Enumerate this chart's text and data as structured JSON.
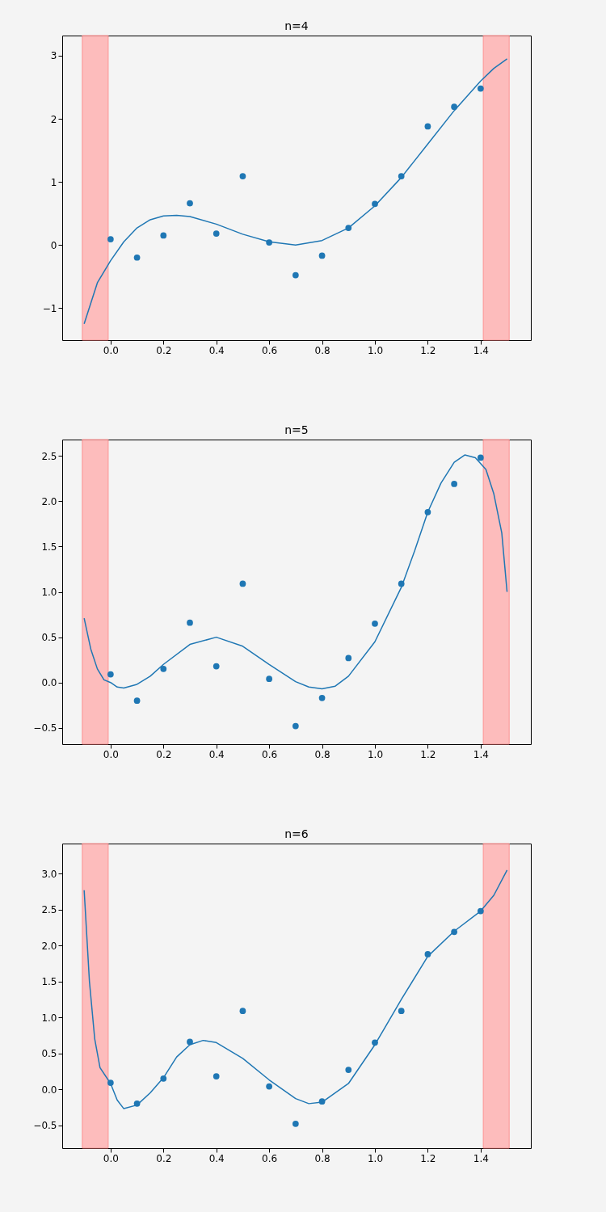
{
  "chart_data": [
    {
      "type": "scatter",
      "title": "n=4",
      "xlim": [
        -0.183,
        1.59
      ],
      "ylim": [
        -1.51,
        3.32
      ],
      "xticks": [
        {
          "value": 0,
          "label": "0.0"
        },
        {
          "value": 0.2,
          "label": "0.2"
        },
        {
          "value": 0.4,
          "label": "0.4"
        },
        {
          "value": 0.6,
          "label": "0.6"
        },
        {
          "value": 0.8,
          "label": "0.8"
        },
        {
          "value": 1,
          "label": "1.0"
        },
        {
          "value": 1.2,
          "label": "1.2"
        },
        {
          "value": 1.4,
          "label": "1.4"
        }
      ],
      "yticks": [
        -1,
        0,
        1,
        2,
        3
      ],
      "grid": false,
      "bands": [
        {
          "axis": "x",
          "from": -0.107,
          "to": -0.009,
          "color": "#ffb3b3"
        },
        {
          "axis": "x",
          "from": 1.41,
          "to": 1.508,
          "color": "#ffb3b3"
        }
      ],
      "series": [
        {
          "type": "line",
          "color": "#1f77b4",
          "line_style": "solid",
          "x": [
            -0.1,
            -0.05,
            0,
            0.05,
            0.1,
            0.15,
            0.2,
            0.25,
            0.3,
            0.4,
            0.5,
            0.6,
            0.7,
            0.8,
            0.9,
            1.0,
            1.1,
            1.2,
            1.3,
            1.4,
            1.45,
            1.5
          ],
          "values": [
            -1.25,
            -0.6,
            -0.25,
            0.05,
            0.27,
            0.4,
            0.46,
            0.47,
            0.45,
            0.33,
            0.17,
            0.05,
            0.0,
            0.07,
            0.27,
            0.62,
            1.07,
            1.6,
            2.13,
            2.6,
            2.8,
            2.95
          ]
        },
        {
          "type": "scatter",
          "color": "#1f77b4",
          "marker": "circle",
          "x": [
            0,
            0.1,
            0.2,
            0.3,
            0.4,
            0.5,
            0.6,
            0.7,
            0.8,
            0.9,
            1.0,
            1.1,
            1.2,
            1.3,
            1.4
          ],
          "values": [
            0.09,
            -0.2,
            0.15,
            0.66,
            0.18,
            1.09,
            0.04,
            -0.48,
            -0.17,
            0.27,
            0.65,
            1.09,
            1.88,
            2.19,
            2.48
          ]
        }
      ]
    },
    {
      "type": "scatter",
      "title": "n=5",
      "xlim": [
        -0.183,
        1.59
      ],
      "ylim": [
        -0.68,
        2.68
      ],
      "xticks": [
        {
          "value": 0,
          "label": "0.0"
        },
        {
          "value": 0.2,
          "label": "0.2"
        },
        {
          "value": 0.4,
          "label": "0.4"
        },
        {
          "value": 0.6,
          "label": "0.6"
        },
        {
          "value": 0.8,
          "label": "0.8"
        },
        {
          "value": 1,
          "label": "1.0"
        },
        {
          "value": 1.2,
          "label": "1.2"
        },
        {
          "value": 1.4,
          "label": "1.4"
        }
      ],
      "yticks": [
        -0.5,
        {
          "value": 0,
          "label": "0.0"
        },
        0.5,
        {
          "value": 1,
          "label": "1.0"
        },
        1.5,
        {
          "value": 2,
          "label": "2.0"
        },
        2.5
      ],
      "grid": false,
      "bands": [
        {
          "axis": "x",
          "from": -0.107,
          "to": -0.009,
          "color": "#ffb3b3"
        },
        {
          "axis": "x",
          "from": 1.41,
          "to": 1.508,
          "color": "#ffb3b3"
        }
      ],
      "series": [
        {
          "type": "line",
          "color": "#1f77b4",
          "line_style": "solid",
          "x": [
            -0.1,
            -0.075,
            -0.05,
            -0.025,
            0,
            0.025,
            0.05,
            0.1,
            0.15,
            0.2,
            0.3,
            0.4,
            0.5,
            0.6,
            0.7,
            0.75,
            0.8,
            0.85,
            0.9,
            1.0,
            1.1,
            1.15,
            1.2,
            1.25,
            1.3,
            1.34,
            1.38,
            1.42,
            1.45,
            1.48,
            1.5
          ],
          "values": [
            0.71,
            0.37,
            0.15,
            0.03,
            0.0,
            -0.05,
            -0.06,
            -0.02,
            0.07,
            0.2,
            0.42,
            0.5,
            0.4,
            0.2,
            0.01,
            -0.05,
            -0.07,
            -0.04,
            0.07,
            0.45,
            1.05,
            1.45,
            1.88,
            2.2,
            2.43,
            2.51,
            2.48,
            2.35,
            2.08,
            1.65,
            1.0
          ]
        },
        {
          "type": "scatter",
          "color": "#1f77b4",
          "marker": "circle",
          "x": [
            0,
            0.1,
            0.2,
            0.3,
            0.4,
            0.5,
            0.6,
            0.7,
            0.8,
            0.9,
            1.0,
            1.1,
            1.2,
            1.3,
            1.4
          ],
          "values": [
            0.09,
            -0.2,
            0.15,
            0.66,
            0.18,
            1.09,
            0.04,
            -0.48,
            -0.17,
            0.27,
            0.65,
            1.09,
            1.88,
            2.19,
            2.48
          ]
        }
      ]
    },
    {
      "type": "scatter",
      "title": "n=6",
      "xlim": [
        -0.183,
        1.59
      ],
      "ylim": [
        -0.82,
        3.42
      ],
      "xticks": [
        {
          "value": 0,
          "label": "0.0"
        },
        {
          "value": 0.2,
          "label": "0.2"
        },
        {
          "value": 0.4,
          "label": "0.4"
        },
        {
          "value": 0.6,
          "label": "0.6"
        },
        {
          "value": 0.8,
          "label": "0.8"
        },
        {
          "value": 1,
          "label": "1.0"
        },
        {
          "value": 1.2,
          "label": "1.2"
        },
        {
          "value": 1.4,
          "label": "1.4"
        }
      ],
      "yticks": [
        -0.5,
        {
          "value": 0,
          "label": "0.0"
        },
        0.5,
        {
          "value": 1,
          "label": "1.0"
        },
        1.5,
        {
          "value": 2,
          "label": "2.0"
        },
        2.5,
        {
          "value": 3,
          "label": "3.0"
        }
      ],
      "grid": false,
      "bands": [
        {
          "axis": "x",
          "from": -0.107,
          "to": -0.009,
          "color": "#ffb3b3"
        },
        {
          "axis": "x",
          "from": 1.41,
          "to": 1.508,
          "color": "#ffb3b3"
        }
      ],
      "series": [
        {
          "type": "line",
          "color": "#1f77b4",
          "line_style": "solid",
          "x": [
            -0.1,
            -0.08,
            -0.06,
            -0.04,
            0,
            0.025,
            0.05,
            0.1,
            0.15,
            0.2,
            0.25,
            0.3,
            0.35,
            0.4,
            0.5,
            0.6,
            0.7,
            0.75,
            0.8,
            0.9,
            1.0,
            1.1,
            1.2,
            1.3,
            1.4,
            1.45,
            1.5
          ],
          "values": [
            2.77,
            1.5,
            0.7,
            0.3,
            0.08,
            -0.15,
            -0.27,
            -0.22,
            -0.05,
            0.16,
            0.45,
            0.62,
            0.68,
            0.65,
            0.43,
            0.13,
            -0.13,
            -0.2,
            -0.18,
            0.08,
            0.62,
            1.25,
            1.85,
            2.2,
            2.48,
            2.7,
            3.05
          ]
        },
        {
          "type": "scatter",
          "color": "#1f77b4",
          "marker": "circle",
          "x": [
            0,
            0.1,
            0.2,
            0.3,
            0.4,
            0.5,
            0.6,
            0.7,
            0.8,
            0.9,
            1.0,
            1.1,
            1.2,
            1.3,
            1.4
          ],
          "values": [
            0.09,
            -0.2,
            0.15,
            0.66,
            0.18,
            1.09,
            0.04,
            -0.48,
            -0.17,
            0.27,
            0.65,
            1.09,
            1.88,
            2.19,
            2.48
          ]
        }
      ]
    }
  ]
}
